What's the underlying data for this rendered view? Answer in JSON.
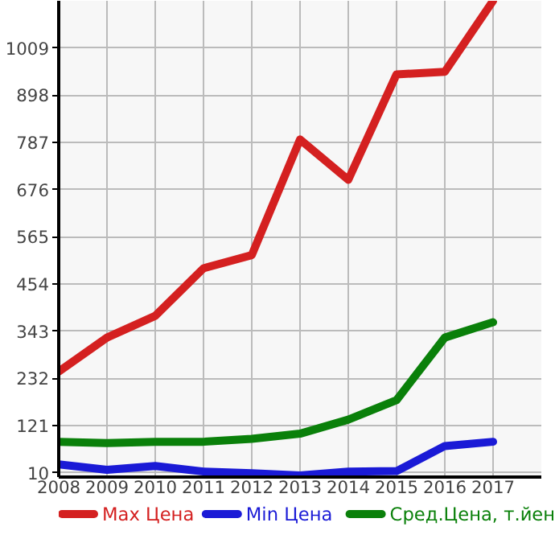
{
  "chart_data": {
    "type": "line",
    "x": [
      2008,
      2009,
      2010,
      2011,
      2012,
      2013,
      2014,
      2015,
      2016,
      2017
    ],
    "series": [
      {
        "name": "Max Цена",
        "color": "#d42020",
        "values": [
          248,
          328,
          379,
          491,
          522,
          794,
          699,
          947,
          953,
          1120
        ]
      },
      {
        "name": "Min Цена",
        "color": "#1a1ad6",
        "values": [
          30,
          17,
          26,
          13,
          9,
          4,
          13,
          14,
          73,
          83
        ]
      },
      {
        "name": "Сред.Цена, т.йен",
        "color": "#0a800a",
        "values": [
          83,
          80,
          83,
          83,
          90,
          102,
          135,
          181,
          328,
          364
        ]
      }
    ],
    "xlim": [
      2008,
      2018
    ],
    "xticks": [
      2008,
      2009,
      2010,
      2011,
      2012,
      2013,
      2014,
      2015,
      2016,
      2017
    ],
    "ylim": [
      0,
      1120
    ],
    "yticks": [
      10,
      121,
      232,
      343,
      454,
      565,
      676,
      787,
      898,
      1009
    ],
    "grid": true,
    "legend": "bottom",
    "marker": "none",
    "line_style": "solid"
  }
}
